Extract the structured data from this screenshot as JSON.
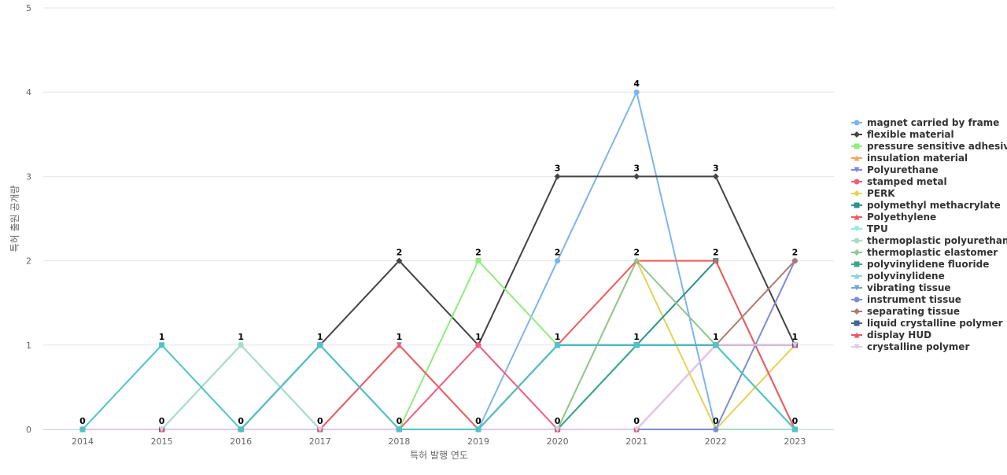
{
  "chart_data": {
    "type": "line",
    "title": "",
    "xlabel": "특허 발행 연도",
    "ylabel": "특허 출원 공개량",
    "ylim": [
      0,
      5
    ],
    "yticks": [
      0,
      1,
      2,
      3,
      4,
      5
    ],
    "grid": true,
    "legend_position": "right",
    "categories": [
      "2014",
      "2015",
      "2016",
      "2017",
      "2018",
      "2019",
      "2020",
      "2021",
      "2022",
      "2023"
    ],
    "series": [
      {
        "name": "magnet carried by frame",
        "color": "#7cb5ec",
        "marker": "circle",
        "values": [
          0,
          0,
          0,
          0,
          0,
          0,
          2,
          4,
          0,
          0
        ]
      },
      {
        "name": "flexible material",
        "color": "#434348",
        "marker": "diamond",
        "values": [
          0,
          0,
          0,
          1,
          2,
          1,
          3,
          3,
          3,
          1
        ]
      },
      {
        "name": "pressure sensitive adhesive",
        "color": "#90ed7d",
        "marker": "square",
        "values": [
          0,
          0,
          0,
          0,
          0,
          2,
          1,
          1,
          1,
          1
        ]
      },
      {
        "name": "insulation material",
        "color": "#f7a35c",
        "marker": "triangle",
        "values": [
          0,
          0,
          0,
          0,
          0,
          0,
          0,
          0,
          0,
          0
        ]
      },
      {
        "name": "Polyurethane",
        "color": "#8085e9",
        "marker": "triangle-down",
        "values": [
          0,
          0,
          0,
          0,
          1,
          0,
          0,
          0,
          0,
          0
        ]
      },
      {
        "name": "stamped metal",
        "color": "#f15c80",
        "marker": "circle",
        "values": [
          0,
          0,
          0,
          0,
          0,
          1,
          0,
          0,
          0,
          0
        ]
      },
      {
        "name": "PERK",
        "color": "#e4d354",
        "marker": "diamond",
        "values": [
          0,
          0,
          0,
          0,
          0,
          0,
          0,
          2,
          0,
          1
        ]
      },
      {
        "name": "polymethyl methacrylate",
        "color": "#2b908f",
        "marker": "square",
        "values": [
          0,
          0,
          0,
          0,
          0,
          0,
          0,
          1,
          2,
          0
        ]
      },
      {
        "name": "Polyethylene",
        "color": "#f45b5b",
        "marker": "triangle",
        "values": [
          0,
          0,
          0,
          0,
          1,
          0,
          1,
          2,
          2,
          0
        ]
      },
      {
        "name": "TPU",
        "color": "#91e8e1",
        "marker": "triangle-down",
        "values": [
          0,
          0,
          1,
          0,
          0,
          0,
          0,
          0,
          0,
          0
        ]
      },
      {
        "name": "thermoplastic polyurethane",
        "color": "#a6dcc3",
        "marker": "circle",
        "values": [
          0,
          0,
          1,
          0,
          0,
          0,
          0,
          0,
          0,
          0
        ]
      },
      {
        "name": "thermoplastic elastomer",
        "color": "#8fc78f",
        "marker": "diamond",
        "values": [
          0,
          0,
          0,
          0,
          0,
          0,
          0,
          2,
          1,
          1
        ]
      },
      {
        "name": "polyvinylidene fluoride",
        "color": "#3aa88a",
        "marker": "square",
        "values": [
          0,
          0,
          0,
          0,
          0,
          0,
          0,
          1,
          1,
          0
        ]
      },
      {
        "name": "polyvinylidene",
        "color": "#89d2e2",
        "marker": "triangle",
        "values": [
          0,
          0,
          0,
          0,
          0,
          0,
          1,
          1,
          1,
          1
        ]
      },
      {
        "name": "vibrating tissue",
        "color": "#7ba4c9",
        "marker": "triangle-down",
        "values": [
          0,
          0,
          0,
          0,
          0,
          0,
          1,
          1,
          1,
          1
        ]
      },
      {
        "name": "instrument tissue",
        "color": "#7e8cd6",
        "marker": "circle",
        "values": [
          0,
          0,
          0,
          0,
          0,
          0,
          0,
          0,
          0,
          2
        ]
      },
      {
        "name": "separating tissue",
        "color": "#b07a72",
        "marker": "diamond",
        "values": [
          0,
          0,
          0,
          0,
          0,
          0,
          0,
          0,
          1,
          2
        ]
      },
      {
        "name": "liquid crystalline polymer",
        "color": "#41678d",
        "marker": "square",
        "values": [
          0,
          0,
          0,
          1,
          0,
          0,
          1,
          1,
          1,
          1
        ]
      },
      {
        "name": "display HUD",
        "color": "#e8575d",
        "marker": "triangle",
        "values": [
          0,
          0,
          0,
          0,
          0,
          0,
          0,
          0,
          1,
          1
        ]
      },
      {
        "name": "crystalline polymer",
        "color": "#e0c8ee",
        "marker": "triangle-down",
        "values": [
          0,
          0,
          0,
          0,
          0,
          0,
          0,
          0,
          1,
          1
        ]
      },
      {
        "name": "",
        "color": "#4fc4c7",
        "marker": "square",
        "values": [
          0,
          1,
          0,
          1,
          0,
          0,
          1,
          1,
          1,
          0
        ]
      }
    ],
    "data_labels": [
      {
        "category": "2014",
        "text": "0"
      },
      {
        "category": "2015",
        "text": "1"
      },
      {
        "category": "2015",
        "text": "0"
      },
      {
        "category": "2016",
        "text": "1"
      },
      {
        "category": "2016",
        "text": "0"
      },
      {
        "category": "2017",
        "text": "1"
      },
      {
        "category": "2017",
        "text": "0"
      },
      {
        "category": "2018",
        "text": "2"
      },
      {
        "category": "2018",
        "text": "1"
      },
      {
        "category": "2018",
        "text": "0"
      },
      {
        "category": "2019",
        "text": "2"
      },
      {
        "category": "2019",
        "text": "1"
      },
      {
        "category": "2019",
        "text": "0"
      },
      {
        "category": "2020",
        "text": "3"
      },
      {
        "category": "2020",
        "text": "2"
      },
      {
        "category": "2020",
        "text": "1"
      },
      {
        "category": "2020",
        "text": "0"
      },
      {
        "category": "2021",
        "text": "4"
      },
      {
        "category": "2021",
        "text": "3"
      },
      {
        "category": "2021",
        "text": "2"
      },
      {
        "category": "2021",
        "text": "1"
      },
      {
        "category": "2021",
        "text": "0"
      },
      {
        "category": "2022",
        "text": "3"
      },
      {
        "category": "2022",
        "text": "2"
      },
      {
        "category": "2022",
        "text": "1"
      },
      {
        "category": "2022",
        "text": "0"
      },
      {
        "category": "2023",
        "text": "2"
      },
      {
        "category": "2023",
        "text": "1"
      },
      {
        "category": "2023",
        "text": "0"
      }
    ]
  }
}
